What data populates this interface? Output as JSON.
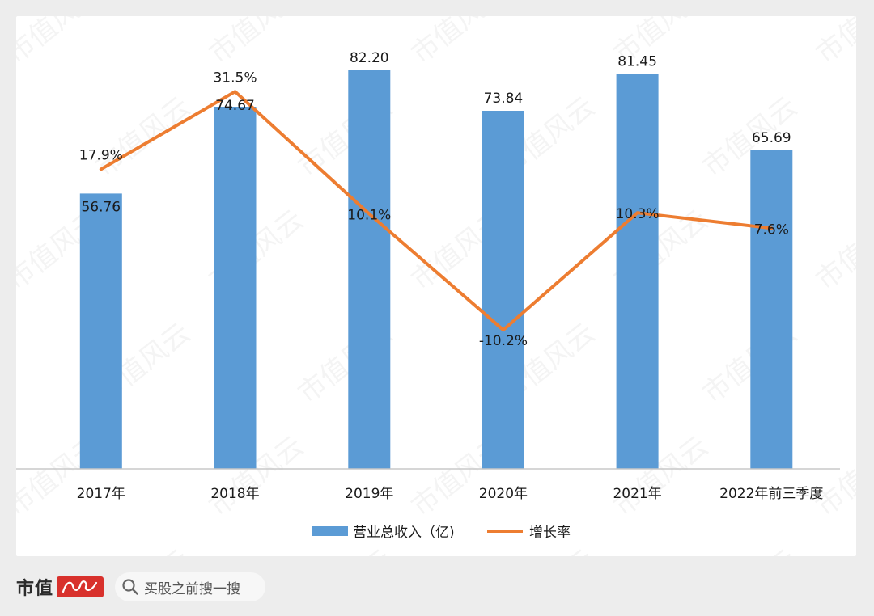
{
  "watermark": "市值风云",
  "footer": {
    "brand": "市值",
    "search_label": "买股之前搜一搜"
  },
  "colors": {
    "bar": "#5b9bd5",
    "line": "#ed7d31",
    "axis": "#c8c8c8",
    "text": "#1a1a1a",
    "seal": "#d8312c"
  },
  "chart_data": {
    "type": "bar",
    "categories": [
      "2017年",
      "2018年",
      "2019年",
      "2020年",
      "2021年",
      "2022年前三季度"
    ],
    "series": [
      {
        "name": "营业总收入（亿)",
        "type": "bar",
        "values": [
          56.76,
          74.67,
          82.2,
          73.84,
          81.45,
          65.69
        ],
        "labels": [
          "56.76",
          "74.67",
          "82.20",
          "73.84",
          "81.45",
          "65.69"
        ]
      },
      {
        "name": "增长率",
        "type": "line",
        "values": [
          17.9,
          31.5,
          10.1,
          -10.2,
          10.3,
          7.6
        ],
        "labels": [
          "17.9%",
          "31.5%",
          "10.1%",
          "-10.2%",
          "10.3%",
          "7.6%"
        ]
      }
    ],
    "legend": "bottom-center",
    "grid": false
  }
}
